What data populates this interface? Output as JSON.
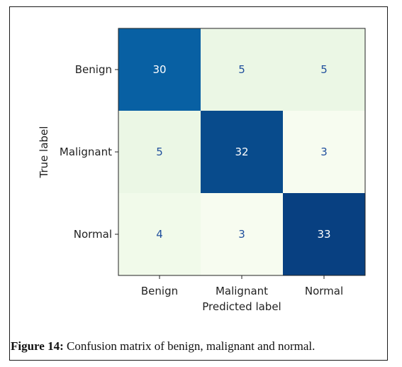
{
  "chart_data": {
    "type": "heatmap",
    "x_categories": [
      "Benign",
      "Malignant",
      "Normal"
    ],
    "y_categories": [
      "Benign",
      "Malignant",
      "Normal"
    ],
    "values": [
      [
        30,
        5,
        5
      ],
      [
        5,
        32,
        3
      ],
      [
        4,
        3,
        33
      ]
    ],
    "xlabel": "Predicted label",
    "ylabel": "True label",
    "colormap": "GnBu",
    "vmin": 3,
    "vmax": 33,
    "colorbar": false,
    "grid": false
  },
  "caption": {
    "label": "Figure 14:",
    "text": " Confusion matrix of benign, malignant and normal."
  },
  "colors": {
    "low": "#f7fcf0",
    "mid": "#e0f3db",
    "high": "#084081",
    "text_light": "#ffffff",
    "text_dark": "#1f4e9c"
  }
}
